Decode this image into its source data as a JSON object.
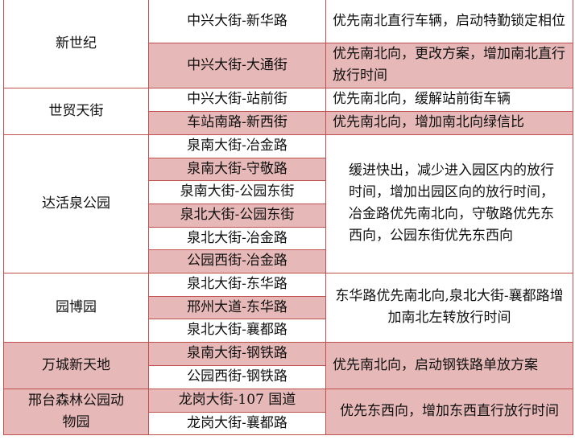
{
  "colors": {
    "highlight": "#e6b8b7",
    "border": "#c0504d"
  },
  "groups": [
    {
      "name": "新世纪",
      "rows": [
        {
          "intersection": "中兴大街-新华路",
          "measure": "优先南北直行车辆，启动特勤锁定相位"
        },
        {
          "intersection": "中兴大街-大通街",
          "measure": "优先南北向，更改方案，增加南北直行放行时间"
        }
      ]
    },
    {
      "name": "世贸天街",
      "rows": [
        {
          "intersection": "中兴大街-站前街",
          "measure": "优先南北向，缓解站前街车辆"
        },
        {
          "intersection": "车站南路-新西街",
          "measure": "优先南北向，增加南北向绿信比"
        }
      ]
    },
    {
      "name": "达活泉公园",
      "measure": "缓进快出，减少进入园区内的放行时间，增加出园区向的放行时间，冶金路优先南北向，守敬路优先东西向，公园东街优先东西向",
      "rows": [
        {
          "intersection": "泉南大街-冶金路"
        },
        {
          "intersection": "泉南大街-守敬路"
        },
        {
          "intersection": "泉南大街-公园东街"
        },
        {
          "intersection": "泉北大街-公园东街"
        },
        {
          "intersection": "泉北大街-冶金路"
        },
        {
          "intersection": "公园西街-冶金路"
        }
      ]
    },
    {
      "name": "园博园",
      "measure": "东华路优先南北向,泉北大街-襄都路增加南北左转放行时间",
      "rows": [
        {
          "intersection": "泉北大街-东华路"
        },
        {
          "intersection": "邢州大道-东华路"
        },
        {
          "intersection": "泉北大街-襄都路"
        }
      ]
    },
    {
      "name": "万城新天地",
      "measure": "优先南北向，启动钢铁路单放方案",
      "rows": [
        {
          "intersection": "泉南大街-钢铁路"
        },
        {
          "intersection": "公园西街-钢铁路"
        }
      ]
    },
    {
      "name": "邢台森林公园动物园",
      "measure": "优先东西向，增加东西直行放行时间",
      "rows": [
        {
          "intersection": "龙岗大街-107 国道"
        },
        {
          "intersection": "龙岗大街-襄都路"
        }
      ]
    }
  ]
}
